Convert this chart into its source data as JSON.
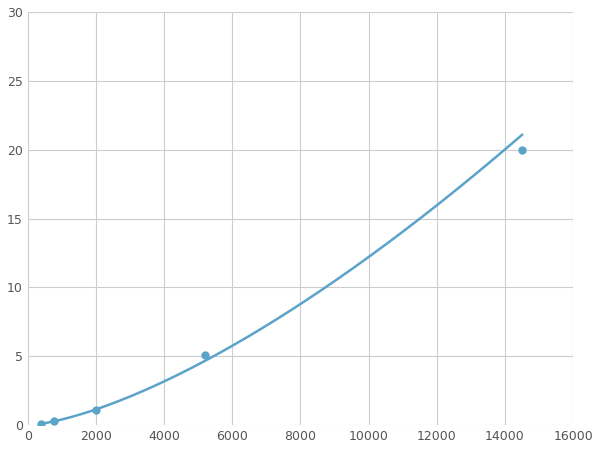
{
  "x_points": [
    390,
    780,
    2000,
    5200,
    14500
  ],
  "y_points": [
    0.1,
    0.3,
    1.1,
    5.1,
    20.0
  ],
  "line_color": "#5ba3c9",
  "marker_color": "#5ba3c9",
  "marker_size": 6,
  "line_width": 1.8,
  "xlim": [
    0,
    16000
  ],
  "ylim": [
    0,
    30
  ],
  "xticks": [
    0,
    2000,
    4000,
    6000,
    8000,
    10000,
    12000,
    14000,
    16000
  ],
  "yticks": [
    0,
    5,
    10,
    15,
    20,
    25,
    30
  ],
  "grid_color": "#cccccc",
  "background_color": "#ffffff",
  "figsize": [
    6.0,
    4.5
  ],
  "dpi": 100
}
